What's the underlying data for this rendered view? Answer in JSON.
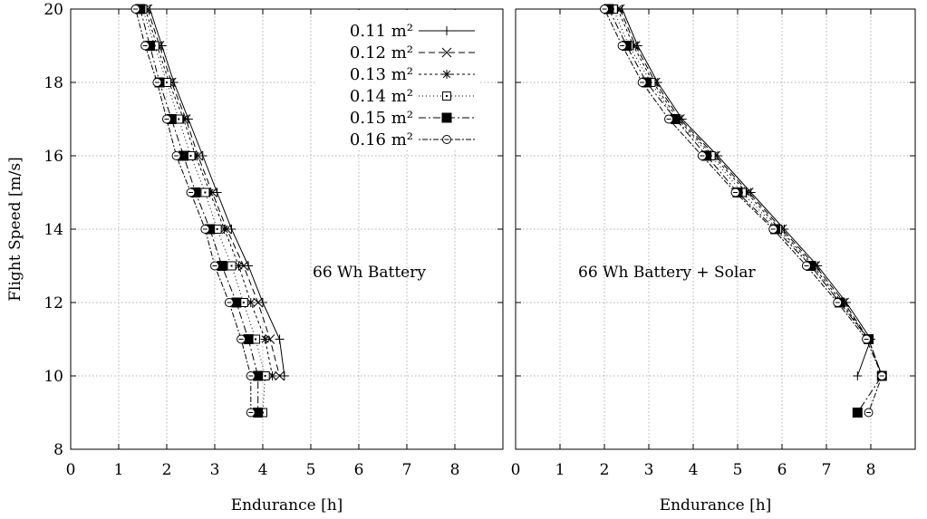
{
  "chart_data": [
    {
      "type": "line",
      "annotation": "66 Wh Battery",
      "xlabel": "Endurance [h]",
      "ylabel": "Flight Speed [m/s]",
      "xlim": [
        0,
        9
      ],
      "ylim": [
        8,
        20
      ],
      "xticks": [
        0,
        1,
        2,
        3,
        4,
        5,
        6,
        7,
        8
      ],
      "yticks": [
        8,
        10,
        12,
        14,
        16,
        18,
        20
      ],
      "grid": true,
      "legend_position": "top-right",
      "series": [
        {
          "name": "0.11 m²",
          "marker": "plus",
          "dash": "",
          "points": [
            [
              1.65,
              20
            ],
            [
              1.9,
              19
            ],
            [
              2.15,
              18
            ],
            [
              2.45,
              17
            ],
            [
              2.75,
              16
            ],
            [
              3.05,
              15
            ],
            [
              3.35,
              14
            ],
            [
              3.7,
              13
            ],
            [
              4.0,
              12
            ],
            [
              4.35,
              11
            ],
            [
              4.45,
              10
            ]
          ]
        },
        {
          "name": "0.12 m²",
          "marker": "cross",
          "dash": "7 4",
          "points": [
            [
              1.6,
              20
            ],
            [
              1.85,
              19
            ],
            [
              2.1,
              18
            ],
            [
              2.4,
              17
            ],
            [
              2.65,
              16
            ],
            [
              2.95,
              15
            ],
            [
              3.25,
              14
            ],
            [
              3.6,
              13
            ],
            [
              3.9,
              12
            ],
            [
              4.15,
              11
            ],
            [
              4.35,
              10
            ]
          ]
        },
        {
          "name": "0.13 m²",
          "marker": "star",
          "dash": "3 3",
          "points": [
            [
              1.55,
              20
            ],
            [
              1.8,
              19
            ],
            [
              2.05,
              18
            ],
            [
              2.35,
              17
            ],
            [
              2.6,
              16
            ],
            [
              2.9,
              15
            ],
            [
              3.2,
              14
            ],
            [
              3.5,
              13
            ],
            [
              3.75,
              12
            ],
            [
              4.05,
              11
            ],
            [
              4.2,
              10
            ]
          ]
        },
        {
          "name": "0.14 m²",
          "marker": "square-open",
          "dash": "1 3",
          "points": [
            [
              1.5,
              20
            ],
            [
              1.75,
              19
            ],
            [
              2.0,
              18
            ],
            [
              2.25,
              17
            ],
            [
              2.5,
              16
            ],
            [
              2.8,
              15
            ],
            [
              3.05,
              14
            ],
            [
              3.35,
              13
            ],
            [
              3.6,
              12
            ],
            [
              3.85,
              11
            ],
            [
              4.05,
              10
            ],
            [
              4.0,
              9
            ]
          ]
        },
        {
          "name": "0.15 m²",
          "marker": "square-filled",
          "dash": "8 3 2 3",
          "points": [
            [
              1.45,
              20
            ],
            [
              1.65,
              19
            ],
            [
              1.85,
              18
            ],
            [
              2.1,
              17
            ],
            [
              2.35,
              16
            ],
            [
              2.6,
              15
            ],
            [
              2.9,
              14
            ],
            [
              3.15,
              13
            ],
            [
              3.45,
              12
            ],
            [
              3.7,
              11
            ],
            [
              3.9,
              10
            ],
            [
              3.9,
              9
            ]
          ]
        },
        {
          "name": "0.16 m²",
          "marker": "circle-open",
          "dash": "2 2 6 2",
          "points": [
            [
              1.35,
              20
            ],
            [
              1.55,
              19
            ],
            [
              1.8,
              18
            ],
            [
              2.0,
              17
            ],
            [
              2.2,
              16
            ],
            [
              2.5,
              15
            ],
            [
              2.8,
              14
            ],
            [
              3.0,
              13
            ],
            [
              3.3,
              12
            ],
            [
              3.55,
              11
            ],
            [
              3.75,
              10
            ],
            [
              3.75,
              9
            ]
          ]
        }
      ]
    },
    {
      "type": "line",
      "annotation": "66 Wh Battery + Solar",
      "xlabel": "Endurance [h]",
      "ylabel": "",
      "xlim": [
        0,
        9
      ],
      "ylim": [
        8,
        20
      ],
      "xticks": [
        0,
        1,
        2,
        3,
        4,
        5,
        6,
        7,
        8
      ],
      "yticks": [
        8,
        10,
        12,
        14,
        16,
        18,
        20
      ],
      "grid": true,
      "series": [
        {
          "name": "0.11 m²",
          "marker": "plus",
          "dash": "",
          "points": [
            [
              2.4,
              20
            ],
            [
              2.75,
              19
            ],
            [
              3.2,
              18
            ],
            [
              3.75,
              17
            ],
            [
              4.55,
              16
            ],
            [
              5.3,
              15
            ],
            [
              6.05,
              14
            ],
            [
              6.8,
              13
            ],
            [
              7.45,
              12
            ],
            [
              8.0,
              11
            ],
            [
              7.7,
              10
            ]
          ]
        },
        {
          "name": "0.12 m²",
          "marker": "cross",
          "dash": "7 4",
          "points": [
            [
              2.35,
              20
            ],
            [
              2.7,
              19
            ],
            [
              3.15,
              18
            ],
            [
              3.7,
              17
            ],
            [
              4.5,
              16
            ],
            [
              5.25,
              15
            ],
            [
              6.0,
              14
            ],
            [
              6.75,
              13
            ],
            [
              7.4,
              12
            ],
            [
              7.95,
              11
            ],
            [
              8.25,
              10
            ]
          ]
        },
        {
          "name": "0.13 m²",
          "marker": "star",
          "dash": "3 3",
          "points": [
            [
              2.3,
              20
            ],
            [
              2.65,
              19
            ],
            [
              3.1,
              18
            ],
            [
              3.65,
              17
            ],
            [
              4.45,
              16
            ],
            [
              5.2,
              15
            ],
            [
              5.95,
              14
            ],
            [
              6.7,
              13
            ],
            [
              7.35,
              12
            ],
            [
              7.95,
              11
            ],
            [
              8.25,
              10
            ]
          ]
        },
        {
          "name": "0.14 m²",
          "marker": "square-open",
          "dash": "1 3",
          "points": [
            [
              2.2,
              20
            ],
            [
              2.55,
              19
            ],
            [
              3.05,
              18
            ],
            [
              3.6,
              17
            ],
            [
              4.4,
              16
            ],
            [
              5.1,
              15
            ],
            [
              5.9,
              14
            ],
            [
              6.65,
              13
            ],
            [
              7.3,
              12
            ],
            [
              7.95,
              11
            ],
            [
              8.25,
              10
            ]
          ]
        },
        {
          "name": "0.15 m²",
          "marker": "square-filled",
          "dash": "8 3 2 3",
          "points": [
            [
              2.1,
              20
            ],
            [
              2.5,
              19
            ],
            [
              2.95,
              18
            ],
            [
              3.6,
              17
            ],
            [
              4.3,
              16
            ],
            [
              5.0,
              15
            ],
            [
              5.85,
              14
            ],
            [
              6.65,
              13
            ],
            [
              7.3,
              12
            ],
            [
              7.95,
              11
            ],
            [
              8.25,
              10
            ],
            [
              7.7,
              9
            ]
          ]
        },
        {
          "name": "0.16 m²",
          "marker": "circle-open",
          "dash": "2 2 6 2",
          "points": [
            [
              2.0,
              20
            ],
            [
              2.4,
              19
            ],
            [
              2.85,
              18
            ],
            [
              3.45,
              17
            ],
            [
              4.2,
              16
            ],
            [
              4.95,
              15
            ],
            [
              5.8,
              14
            ],
            [
              6.55,
              13
            ],
            [
              7.25,
              12
            ],
            [
              7.9,
              11
            ],
            [
              8.25,
              10
            ],
            [
              7.95,
              9
            ]
          ]
        }
      ]
    }
  ]
}
